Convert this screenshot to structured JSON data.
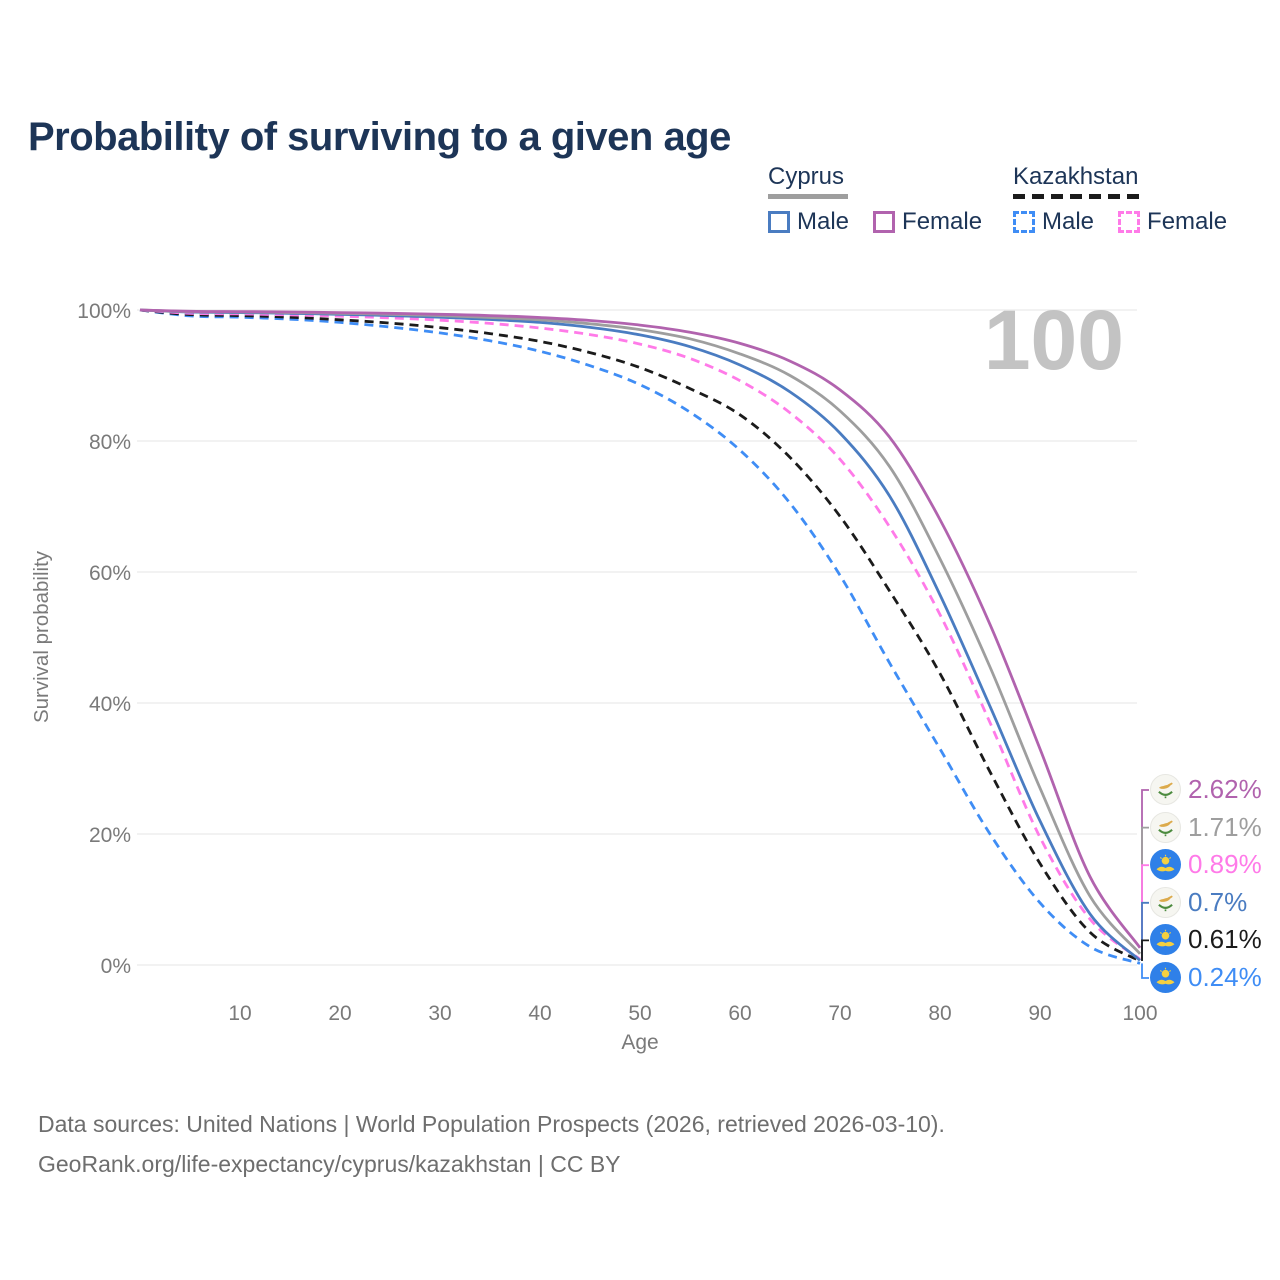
{
  "page": {
    "title": "Probability of surviving to a given age",
    "footer": {
      "line1": "Data sources: United Nations | World Population Prospects (2026, retrieved 2026-03-10).",
      "line2": "GeoRank.org/life-expectancy/cyprus/kazakhstan | CC BY"
    }
  },
  "legend": {
    "groups": [
      {
        "name": "Cyprus",
        "line_style": "solid",
        "underline_color": "#9e9e9e",
        "items": [
          {
            "label": "Male",
            "color": "#4a7cc1"
          },
          {
            "label": "Female",
            "color": "#b163ae"
          }
        ]
      },
      {
        "name": "Kazakhstan",
        "line_style": "dashed",
        "underline_color": "#1b1b1b",
        "items": [
          {
            "label": "Male",
            "color": "#3f8df5"
          },
          {
            "label": "Female",
            "color": "#ff7ae8"
          }
        ]
      }
    ]
  },
  "chart_data": {
    "type": "line",
    "title": "Probability of surviving to a given age",
    "xlabel": "Age",
    "ylabel": "Survival probability",
    "xlim": [
      0,
      100
    ],
    "ylim": [
      0,
      100
    ],
    "x_ticks": [
      10,
      20,
      30,
      40,
      50,
      60,
      70,
      80,
      90,
      100
    ],
    "y_ticks": [
      0,
      20,
      40,
      60,
      80,
      100
    ],
    "y_tick_suffix": "%",
    "grid": "horizontal",
    "hover_age_annotation": "100",
    "x": [
      0,
      5,
      10,
      15,
      20,
      25,
      30,
      35,
      40,
      45,
      50,
      55,
      60,
      65,
      70,
      75,
      80,
      85,
      90,
      95,
      100
    ],
    "series": [
      {
        "name": "Kazakhstan Male",
        "country": "Kazakhstan",
        "sex": "Male",
        "color": "#3f8df5",
        "dashed": true,
        "end_label": "0.24%",
        "values": [
          100,
          99.1,
          98.9,
          98.6,
          98.1,
          97.4,
          96.5,
          95.3,
          93.7,
          91.5,
          88.6,
          84.4,
          78.6,
          70.5,
          59.5,
          46,
          33,
          20,
          9.5,
          2.8,
          0.24
        ]
      },
      {
        "name": "Kazakhstan (both sexes)",
        "country": "Kazakhstan",
        "sex": "Both",
        "color": "#1b1b1b",
        "dashed": true,
        "end_label": "0.61%",
        "values": [
          100,
          99.3,
          99.15,
          98.9,
          98.5,
          98,
          97.3,
          96.4,
          95.2,
          93.5,
          91.2,
          88,
          84,
          77.5,
          68.5,
          57,
          44.5,
          29.5,
          15.5,
          5,
          0.61
        ]
      },
      {
        "name": "Kazakhstan Female",
        "country": "Kazakhstan",
        "sex": "Female",
        "color": "#ff7ae8",
        "dashed": true,
        "end_label": "0.89%",
        "values": [
          100,
          99.5,
          99.4,
          99.25,
          99.05,
          98.8,
          98.45,
          97.95,
          97.25,
          96.25,
          94.8,
          92.6,
          89.2,
          84.3,
          77.2,
          66.8,
          53.5,
          37,
          19.5,
          7,
          0.89
        ]
      },
      {
        "name": "Cyprus Male",
        "country": "Cyprus",
        "sex": "Male",
        "color": "#4a7cc1",
        "dashed": false,
        "end_label": "0.7%",
        "values": [
          100,
          99.7,
          99.6,
          99.5,
          99.35,
          99.15,
          98.9,
          98.55,
          98.1,
          97.35,
          96.2,
          94.4,
          91.6,
          87.5,
          81.2,
          71.5,
          56.5,
          39.5,
          22,
          7.8,
          0.7
        ]
      },
      {
        "name": "Cyprus (both sexes)",
        "country": "Cyprus",
        "sex": "Both",
        "color": "#9e9e9e",
        "dashed": false,
        "end_label": "1.71%",
        "values": [
          100,
          99.75,
          99.7,
          99.6,
          99.5,
          99.35,
          99.15,
          98.85,
          98.5,
          97.9,
          97,
          95.6,
          93.3,
          90,
          84.6,
          76,
          62,
          45.5,
          27,
          10.5,
          1.71
        ]
      },
      {
        "name": "Cyprus Female",
        "country": "Cyprus",
        "sex": "Female",
        "color": "#b163ae",
        "dashed": false,
        "end_label": "2.62%",
        "values": [
          100,
          99.8,
          99.75,
          99.7,
          99.6,
          99.5,
          99.35,
          99.15,
          98.85,
          98.4,
          97.7,
          96.6,
          94.9,
          92.2,
          87.8,
          80.5,
          68,
          52,
          33,
          13.5,
          2.62
        ]
      }
    ]
  }
}
